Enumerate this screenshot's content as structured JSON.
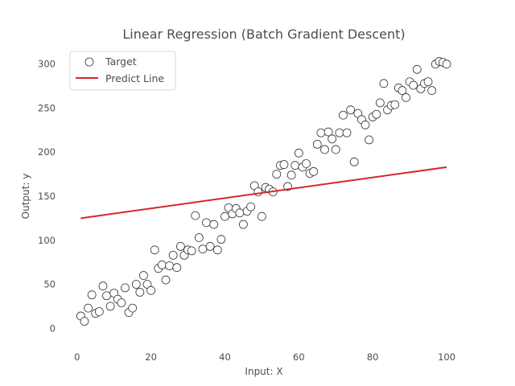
{
  "chart_data": {
    "type": "scatter",
    "title": "Linear Regression (Batch Gradient Descent)",
    "xlabel": "Input: X",
    "ylabel": "Output: y",
    "xlim": [
      -3,
      105
    ],
    "ylim": [
      -18,
      318
    ],
    "xticks": [
      0,
      20,
      40,
      60,
      80,
      100
    ],
    "yticks": [
      0,
      50,
      100,
      150,
      200,
      250,
      300
    ],
    "grid": false,
    "legend": "top-left",
    "series": [
      {
        "name": "Target",
        "kind": "scatter",
        "color": "#333333",
        "x": [
          1,
          2,
          3,
          4,
          5,
          6,
          7,
          8,
          9,
          10,
          11,
          12,
          13,
          14,
          15,
          16,
          17,
          18,
          19,
          20,
          21,
          22,
          23,
          24,
          25,
          26,
          27,
          28,
          29,
          30,
          31,
          32,
          33,
          34,
          35,
          36,
          37,
          38,
          39,
          40,
          41,
          42,
          43,
          44,
          45,
          46,
          47,
          48,
          49,
          50,
          51,
          52,
          53,
          54,
          55,
          56,
          57,
          58,
          59,
          60,
          61,
          62,
          63,
          64,
          65,
          66,
          67,
          68,
          69,
          70,
          71,
          72,
          73,
          74,
          75,
          76,
          77,
          78,
          79,
          80,
          81,
          82,
          83,
          84,
          85,
          86,
          87,
          88,
          89,
          90,
          91,
          92,
          93,
          94,
          95,
          96,
          97,
          98,
          99,
          100
        ],
        "y": [
          14,
          8,
          23,
          38,
          17,
          19,
          48,
          37,
          25,
          40,
          33,
          29,
          46,
          18,
          23,
          50,
          41,
          60,
          50,
          43,
          89,
          68,
          72,
          55,
          71,
          83,
          69,
          93,
          83,
          89,
          88,
          128,
          103,
          90,
          120,
          93,
          118,
          89,
          101,
          127,
          137,
          130,
          136,
          131,
          118,
          133,
          138,
          162,
          155,
          127,
          160,
          158,
          155,
          175,
          185,
          186,
          161,
          174,
          185,
          199,
          183,
          187,
          176,
          178,
          209,
          222,
          203,
          223,
          215,
          203,
          222,
          242,
          222,
          248,
          189,
          244,
          237,
          231,
          214,
          240,
          243,
          256,
          278,
          248,
          253,
          254,
          273,
          270,
          262,
          280,
          276,
          294,
          272,
          278,
          280,
          270,
          300,
          303,
          302,
          300
        ]
      },
      {
        "name": "Predict Line",
        "kind": "line",
        "color": "#d62728",
        "x": [
          1,
          100
        ],
        "y": [
          125,
          183
        ]
      }
    ]
  }
}
